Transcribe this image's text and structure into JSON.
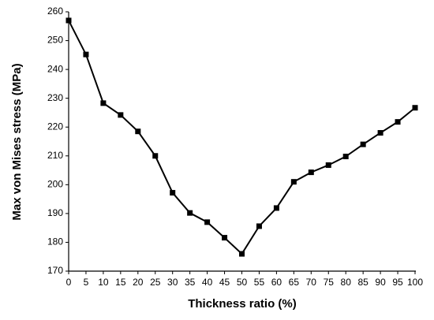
{
  "chart_data": {
    "type": "line",
    "x_label": "Thickness ratio (%)",
    "y_label": "Max von Mises stress (MPa)",
    "x": [
      0,
      5,
      10,
      15,
      20,
      25,
      30,
      35,
      40,
      45,
      50,
      55,
      60,
      65,
      70,
      75,
      80,
      85,
      90,
      95,
      100
    ],
    "series": [
      {
        "color": "#000000",
        "values": [
          257,
          245.2,
          228.3,
          224.2,
          218.5,
          210,
          197.2,
          190.2,
          187,
          181.6,
          176,
          185.6,
          191.9,
          201,
          204.3,
          206.8,
          209.8,
          214,
          218,
          221.8,
          226.7
        ]
      }
    ],
    "xlim": [
      0,
      100
    ],
    "xticks": [
      0,
      5,
      10,
      15,
      20,
      25,
      30,
      35,
      40,
      45,
      50,
      55,
      60,
      65,
      70,
      75,
      80,
      85,
      90,
      95,
      100
    ],
    "ylim": [
      170,
      260
    ],
    "yticks": [
      170,
      180,
      190,
      200,
      210,
      220,
      230,
      240,
      250,
      260
    ]
  }
}
